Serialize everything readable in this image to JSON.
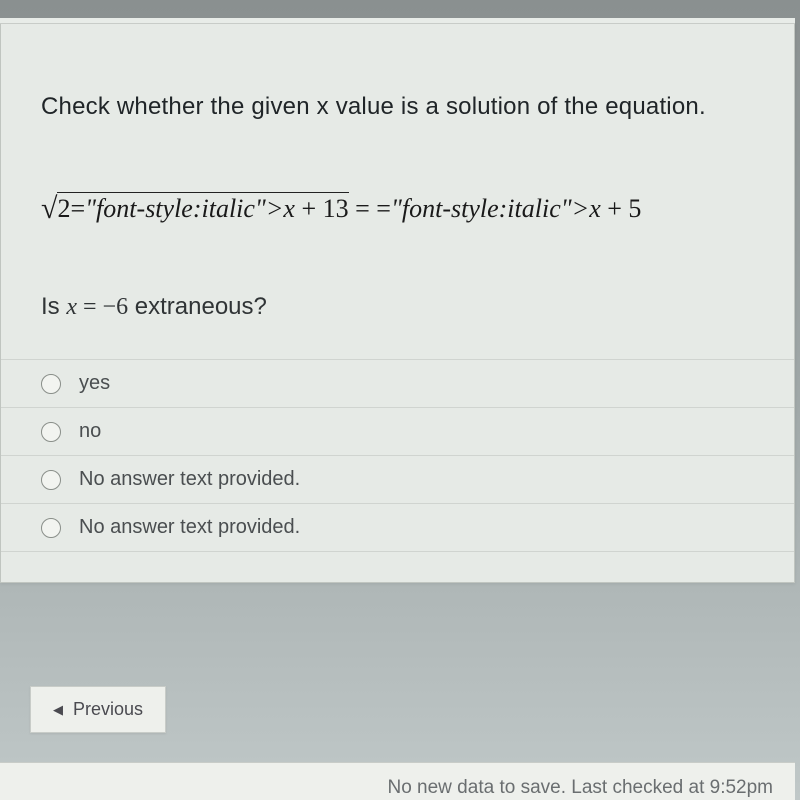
{
  "question": {
    "prompt": "Check whether the given x value is a solution of the equation.",
    "equation": {
      "radicand": "2x + 13",
      "rhs": " = x + 5"
    },
    "sub_prefix": "Is ",
    "sub_var": "x",
    "sub_eq": " = ",
    "sub_val": "−6",
    "sub_suffix": " extraneous?"
  },
  "options": [
    {
      "label": "yes"
    },
    {
      "label": "no"
    },
    {
      "label": "No answer text provided."
    },
    {
      "label": "No answer text provided."
    }
  ],
  "nav": {
    "previous": "Previous"
  },
  "status": {
    "save": "No new data to save. Last checked at 9:52pm"
  },
  "colors": {
    "card_bg": "#e6eae6",
    "border": "#c0c5c0",
    "text": "#202528",
    "sub_text": "#4a4e50"
  }
}
